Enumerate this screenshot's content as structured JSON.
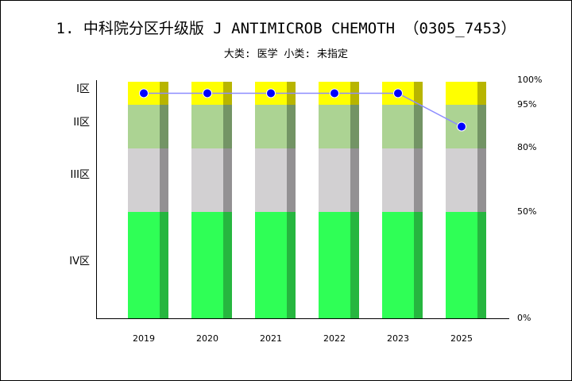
{
  "title": "1. 中科院分区升级版 J ANTIMICROB CHEMOTH （0305_7453）",
  "subtitle": "大类: 医学 小类: 未指定",
  "chart_data": {
    "type": "bar",
    "categories": [
      "2019",
      "2020",
      "2021",
      "2022",
      "2023",
      "2025"
    ],
    "zones": [
      {
        "label": "IV区",
        "from": 0,
        "to": 50,
        "color": "#2fff56",
        "shade": "#26b63f"
      },
      {
        "label": "III区",
        "from": 50,
        "to": 80,
        "color": "#d2d0d2",
        "shade": "#939193"
      },
      {
        "label": "II区",
        "from": 80,
        "to": 95,
        "color": "#acd393",
        "shade": "#739465"
      },
      {
        "label": "I区",
        "from": 95,
        "to": 100,
        "color": "#ffff00",
        "shade": "#b8b500"
      }
    ],
    "series": [
      {
        "zone_values": [
          "I区",
          "I区",
          "I区",
          "I区",
          "I区",
          "II区"
        ]
      }
    ],
    "y_ticks": [
      "0%",
      "50%",
      "80%",
      "95%",
      "100%"
    ],
    "ylim": [
      0,
      100
    ],
    "line_color": "#8c8cff",
    "point_color": "#0000ff"
  }
}
